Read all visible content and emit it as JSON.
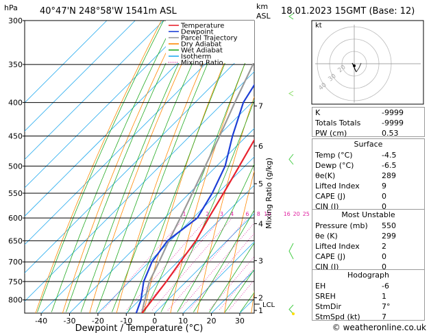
{
  "header": {
    "location": "40°47'N  248°58'W  1541m  ASL",
    "datetime": "18.01.2023  15GMT  (Base: 12)",
    "hpa_label": "hPa",
    "km_label": "km",
    "asl_label": "ASL"
  },
  "legend": {
    "items": [
      {
        "label": "Temperature",
        "color": "#e8222d",
        "style": "solid"
      },
      {
        "label": "Dewpoint",
        "color": "#1d3ed6",
        "style": "solid"
      },
      {
        "label": "Parcel Trajectory",
        "color": "#999999",
        "style": "solid"
      },
      {
        "label": "Dry Adiabat",
        "color": "#ff8800",
        "style": "solid"
      },
      {
        "label": "Wet Adiabat",
        "color": "#22aa22",
        "style": "solid"
      },
      {
        "label": "Isotherm",
        "color": "#22aaee",
        "style": "solid"
      },
      {
        "label": "Mixing Ratio",
        "color": "#e020a0",
        "style": "dotted"
      }
    ]
  },
  "chart_data": {
    "type": "line",
    "subtype": "skew-T log-P",
    "xlabel": "Dewpoint / Temperature (°C)",
    "ylabel": "hPa",
    "right_label": "Mixing Ratio (g/kg)",
    "x_ticks": [
      -40,
      -30,
      -20,
      -10,
      0,
      10,
      20,
      30
    ],
    "pressure_ticks": [
      300,
      350,
      400,
      450,
      500,
      550,
      600,
      650,
      700,
      750,
      800
    ],
    "km_ticks": [
      {
        "p": 405,
        "label": "7"
      },
      {
        "p": 466,
        "label": "6"
      },
      {
        "p": 532,
        "label": "5"
      },
      {
        "p": 612,
        "label": "4"
      },
      {
        "p": 697,
        "label": "3"
      },
      {
        "p": 794,
        "label": "2"
      },
      {
        "p": 830,
        "label": "1"
      }
    ],
    "lcl_label": "LCL",
    "lcl_p": 812,
    "mixing_ratio_labels": [
      "1",
      "2",
      "3",
      "4",
      "6",
      "8",
      "10",
      "16",
      "20",
      "25"
    ],
    "mixing_ratio_values": [
      1,
      2,
      3,
      4,
      6,
      8,
      10,
      16,
      20,
      25
    ],
    "temperature": [
      {
        "p": 838,
        "t": -4.5
      },
      {
        "p": 800,
        "t": -5.5
      },
      {
        "p": 750,
        "t": -7.0
      },
      {
        "p": 700,
        "t": -9.0
      },
      {
        "p": 650,
        "t": -11.0
      },
      {
        "p": 600,
        "t": -14.5
      },
      {
        "p": 550,
        "t": -18.0
      },
      {
        "p": 500,
        "t": -22.0
      },
      {
        "p": 450,
        "t": -26.5
      },
      {
        "p": 400,
        "t": -32.0
      },
      {
        "p": 350,
        "t": -38.5
      },
      {
        "p": 300,
        "t": -46.0
      }
    ],
    "dewpoint": [
      {
        "p": 838,
        "t": -6.5
      },
      {
        "p": 800,
        "t": -9.5
      },
      {
        "p": 750,
        "t": -15.0
      },
      {
        "p": 700,
        "t": -19.0
      },
      {
        "p": 650,
        "t": -21.0
      },
      {
        "p": 600,
        "t": -18.5
      },
      {
        "p": 550,
        "t": -22.0
      },
      {
        "p": 500,
        "t": -27.0
      },
      {
        "p": 450,
        "t": -35.0
      },
      {
        "p": 400,
        "t": -43.0
      },
      {
        "p": 350,
        "t": -48.0
      },
      {
        "p": 300,
        "t": -55.0
      }
    ],
    "parcel": [
      {
        "p": 838,
        "t": -4.5
      },
      {
        "p": 812,
        "t": -7.0
      },
      {
        "p": 750,
        "t": -13.0
      },
      {
        "p": 700,
        "t": -16.5
      },
      {
        "p": 650,
        "t": -20.5
      },
      {
        "p": 600,
        "t": -24.5
      },
      {
        "p": 550,
        "t": -29.0
      },
      {
        "p": 500,
        "t": -34.0
      },
      {
        "p": 450,
        "t": -39.5
      },
      {
        "p": 400,
        "t": -46.0
      },
      {
        "p": 350,
        "t": -53.0
      },
      {
        "p": 300,
        "t": -61.0
      }
    ],
    "xlim": [
      -47,
      36
    ],
    "plim": [
      300,
      838
    ]
  },
  "hodograph": {
    "unit_label": "kt",
    "ring_labels": [
      "40",
      "30",
      "20"
    ]
  },
  "indices": {
    "rows": [
      {
        "label": "K",
        "value": "-9999"
      },
      {
        "label": "Totals Totals",
        "value": "-9999"
      },
      {
        "label": "PW (cm)",
        "value": "0.53"
      }
    ]
  },
  "surface": {
    "title": "Surface",
    "rows": [
      {
        "label": "Temp (°C)",
        "value": "-4.5"
      },
      {
        "label": "Dewp (°C)",
        "value": "-6.5"
      },
      {
        "label": "θe(K)",
        "value": "289"
      },
      {
        "label": "Lifted Index",
        "value": "9"
      },
      {
        "label": "CAPE (J)",
        "value": "0"
      },
      {
        "label": "CIN (J)",
        "value": "0"
      }
    ]
  },
  "most_unstable": {
    "title": "Most Unstable",
    "rows": [
      {
        "label": "Pressure (mb)",
        "value": "550"
      },
      {
        "label": "θe (K)",
        "value": "299"
      },
      {
        "label": "Lifted Index",
        "value": "2"
      },
      {
        "label": "CAPE (J)",
        "value": "0"
      },
      {
        "label": "CIN (J)",
        "value": "0"
      }
    ]
  },
  "hodograph_table": {
    "title": "Hodograph",
    "rows": [
      {
        "label": "EH",
        "value": "-6"
      },
      {
        "label": "SREH",
        "value": "1"
      },
      {
        "label": "StmDir",
        "value": "7°"
      },
      {
        "label": "StmSpd (kt)",
        "value": "7"
      }
    ]
  },
  "footer": {
    "copyright": "© weatheronline.co.uk"
  }
}
